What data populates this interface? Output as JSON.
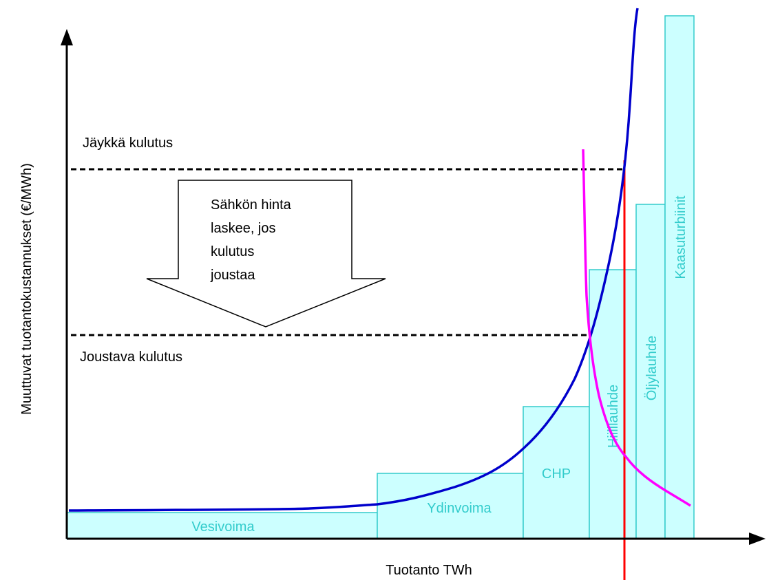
{
  "axes": {
    "y_label": "Muuttuvat tuotantokustannukset (€/MWh)",
    "x_label": "Tuotanto TWh"
  },
  "demand": {
    "rigid": "Jäykkä kulutus",
    "flexible": "Joustava kulutus"
  },
  "arrow_text": [
    "Sähkön hinta",
    "laskee, jos",
    "kulutus",
    "joustaa"
  ],
  "blocks": [
    "Vesivoima",
    "Ydinvoima",
    "CHP",
    "Hiililauhde",
    "Öljylauhde",
    "Kaasuturbiinit"
  ]
}
